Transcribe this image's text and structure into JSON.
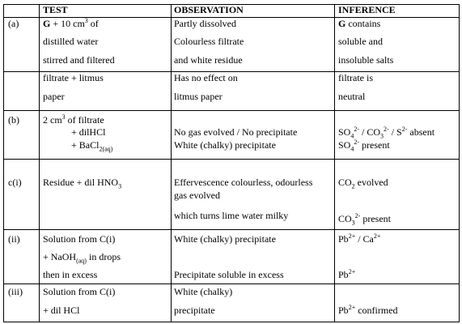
{
  "table": {
    "header": {
      "test": "TEST",
      "observation": "OBSERVATION",
      "inference": "INFERENCE"
    },
    "rows": [
      {
        "label": "(a)",
        "test": [
          [
            {
              "b": "G"
            },
            " + 10 cm",
            {
              "sup": "3"
            },
            " of"
          ],
          [
            "distilled water"
          ],
          [
            "stirred and filtered"
          ]
        ],
        "observation": [
          [
            "Partly dissolved"
          ],
          [
            "Colourless filtrate"
          ],
          [
            "and white residue"
          ]
        ],
        "inference": [
          [
            {
              "b": "G"
            },
            " contains"
          ],
          [
            "soluble and"
          ],
          [
            "insoluble salts"
          ]
        ]
      },
      {
        "test": [
          [
            "filtrate + litmus"
          ],
          [
            "paper"
          ]
        ],
        "observation": [
          [
            "Has no effect on"
          ],
          [
            "litmus paper"
          ]
        ],
        "inference": [
          [
            "filtrate is"
          ],
          [
            "neutral"
          ]
        ]
      },
      {
        "label": "(b)",
        "test": [
          [
            "2 cm",
            {
              "sup": "3"
            },
            " of filtrate"
          ],
          [
            "+ dilHCl"
          ],
          [
            "+ BaCl",
            {
              "sub": "2(aq)"
            }
          ]
        ],
        "observation": [
          [
            "No gas evolved / No precipitate"
          ],
          [
            "White (chalky) precipitate"
          ]
        ],
        "inference": [
          [
            "SO",
            {
              "sub": "4"
            },
            {
              "sup": "2-"
            },
            " / CO",
            {
              "sub": "3"
            },
            {
              "sup": "2-"
            },
            " / S",
            {
              "sup": "2-"
            },
            " absent"
          ],
          [
            "SO",
            {
              "sub": "4"
            },
            {
              "sup": "2-"
            },
            " present"
          ]
        ]
      },
      {
        "label": "c(i)",
        "test": [
          [
            "Residue + dil HNO",
            {
              "sub": "3"
            }
          ]
        ],
        "observation": [
          [
            "Effervescence colourless, odourless"
          ],
          [
            "gas evolved"
          ],
          [
            "which turns lime water milky"
          ]
        ],
        "inference": [
          [
            "CO",
            {
              "sub": "2"
            },
            " evolved"
          ],
          [
            "CO",
            {
              "sub": "3"
            },
            {
              "sup": "2-"
            },
            " present"
          ]
        ]
      },
      {
        "label": "(ii)",
        "test": [
          [
            "Solution from C(i)"
          ],
          [
            "+ NaOH",
            {
              "sub": "(aq)"
            },
            " in drops"
          ],
          [
            "then in excess"
          ]
        ],
        "observation": [
          [
            "White (chalky) precipitate"
          ],
          [
            "Precipitate soluble in excess"
          ]
        ],
        "inference": [
          [
            "Pb",
            {
              "sup": "2+"
            },
            " / Ca",
            {
              "sup": "2+"
            }
          ],
          [
            "Pb",
            {
              "sup": "2+"
            }
          ]
        ]
      },
      {
        "label": "(iii)",
        "test": [
          [
            "Solution from C(i)"
          ],
          [
            "+ dil HCl"
          ]
        ],
        "observation": [
          [
            "White (chalky)"
          ],
          [
            "precipitate"
          ]
        ],
        "inference": [
          [
            "Pb",
            {
              "sup": "2+"
            },
            " confirmed"
          ]
        ]
      }
    ]
  }
}
